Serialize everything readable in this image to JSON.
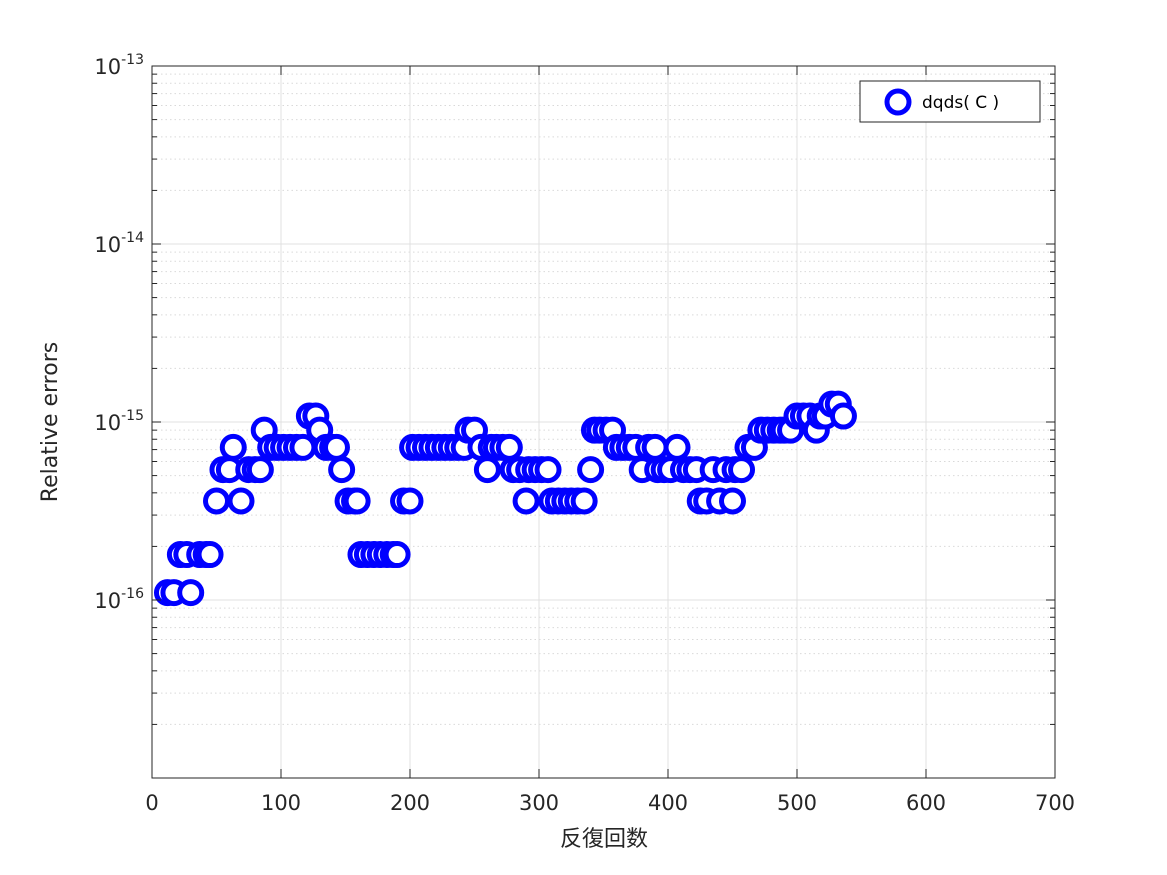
{
  "chart_data": {
    "type": "scatter",
    "xlabel": "反復回数",
    "ylabel": "Relative errors",
    "xlim": [
      0,
      700
    ],
    "ylim": [
      1e-17,
      1e-13
    ],
    "yscale": "log",
    "grid": true,
    "minor_grid": true,
    "legend_position": "top-right",
    "x_ticks": [
      {
        "value": 0,
        "label": "0"
      },
      {
        "value": 100,
        "label": "100"
      },
      {
        "value": 200,
        "label": "200"
      },
      {
        "value": 300,
        "label": "300"
      },
      {
        "value": 400,
        "label": "400"
      },
      {
        "value": 500,
        "label": "500"
      },
      {
        "value": 600,
        "label": "600"
      },
      {
        "value": 700,
        "label": "700"
      }
    ],
    "y_ticks": [
      {
        "value": 1e-13,
        "base": "10",
        "exp": "-13"
      },
      {
        "value": 1e-14,
        "base": "10",
        "exp": "-14"
      },
      {
        "value": 1e-15,
        "base": "10",
        "exp": "-15"
      },
      {
        "value": 1e-16,
        "base": "10",
        "exp": "-16"
      }
    ],
    "series": [
      {
        "name": "dqds( C )",
        "marker": "circle-open",
        "color": "#0000ff",
        "points": [
          [
            12,
            1.1e-16
          ],
          [
            17,
            1.1e-16
          ],
          [
            22,
            1.8e-16
          ],
          [
            27,
            1.8e-16
          ],
          [
            30,
            1.1e-16
          ],
          [
            37,
            1.8e-16
          ],
          [
            42,
            1.8e-16
          ],
          [
            45,
            1.8e-16
          ],
          [
            50,
            3.6e-16
          ],
          [
            55,
            5.4e-16
          ],
          [
            60,
            5.4e-16
          ],
          [
            63,
            7.2e-16
          ],
          [
            69,
            3.6e-16
          ],
          [
            75,
            5.4e-16
          ],
          [
            80,
            5.4e-16
          ],
          [
            84,
            5.4e-16
          ],
          [
            87,
            9e-16
          ],
          [
            92,
            7.2e-16
          ],
          [
            97,
            7.2e-16
          ],
          [
            102,
            7.2e-16
          ],
          [
            107,
            7.2e-16
          ],
          [
            112,
            7.2e-16
          ],
          [
            117,
            7.2e-16
          ],
          [
            122,
            1.08e-15
          ],
          [
            127,
            1.08e-15
          ],
          [
            130,
            9e-16
          ],
          [
            135,
            7.2e-16
          ],
          [
            140,
            7.2e-16
          ],
          [
            143,
            7.2e-16
          ],
          [
            147,
            5.4e-16
          ],
          [
            152,
            3.6e-16
          ],
          [
            157,
            3.6e-16
          ],
          [
            159,
            3.6e-16
          ],
          [
            162,
            1.8e-16
          ],
          [
            167,
            1.8e-16
          ],
          [
            172,
            1.8e-16
          ],
          [
            177,
            1.8e-16
          ],
          [
            182,
            1.8e-16
          ],
          [
            187,
            1.8e-16
          ],
          [
            190,
            1.8e-16
          ],
          [
            195,
            3.6e-16
          ],
          [
            200,
            3.6e-16
          ],
          [
            202,
            7.2e-16
          ],
          [
            207,
            7.2e-16
          ],
          [
            212,
            7.2e-16
          ],
          [
            217,
            7.2e-16
          ],
          [
            222,
            7.2e-16
          ],
          [
            227,
            7.2e-16
          ],
          [
            232,
            7.2e-16
          ],
          [
            237,
            7.2e-16
          ],
          [
            242,
            7.2e-16
          ],
          [
            245,
            9e-16
          ],
          [
            250,
            9e-16
          ],
          [
            255,
            7.2e-16
          ],
          [
            260,
            5.4e-16
          ],
          [
            263,
            7.2e-16
          ],
          [
            267,
            7.2e-16
          ],
          [
            272,
            7.2e-16
          ],
          [
            277,
            7.2e-16
          ],
          [
            280,
            5.4e-16
          ],
          [
            285,
            5.4e-16
          ],
          [
            290,
            3.6e-16
          ],
          [
            292,
            5.4e-16
          ],
          [
            297,
            5.4e-16
          ],
          [
            302,
            5.4e-16
          ],
          [
            307,
            5.4e-16
          ],
          [
            310,
            3.6e-16
          ],
          [
            315,
            3.6e-16
          ],
          [
            320,
            3.6e-16
          ],
          [
            325,
            3.6e-16
          ],
          [
            330,
            3.6e-16
          ],
          [
            335,
            3.6e-16
          ],
          [
            340,
            5.4e-16
          ],
          [
            343,
            9e-16
          ],
          [
            347,
            9e-16
          ],
          [
            352,
            9e-16
          ],
          [
            357,
            9e-16
          ],
          [
            360,
            7.2e-16
          ],
          [
            365,
            7.2e-16
          ],
          [
            370,
            7.2e-16
          ],
          [
            375,
            7.2e-16
          ],
          [
            380,
            5.4e-16
          ],
          [
            385,
            7.2e-16
          ],
          [
            390,
            7.2e-16
          ],
          [
            392,
            5.4e-16
          ],
          [
            397,
            5.4e-16
          ],
          [
            402,
            5.4e-16
          ],
          [
            407,
            7.2e-16
          ],
          [
            412,
            5.4e-16
          ],
          [
            417,
            5.4e-16
          ],
          [
            422,
            5.4e-16
          ],
          [
            425,
            3.6e-16
          ],
          [
            430,
            3.6e-16
          ],
          [
            435,
            5.4e-16
          ],
          [
            440,
            3.6e-16
          ],
          [
            445,
            5.4e-16
          ],
          [
            450,
            3.6e-16
          ],
          [
            452,
            5.4e-16
          ],
          [
            457,
            5.4e-16
          ],
          [
            462,
            7.2e-16
          ],
          [
            467,
            7.2e-16
          ],
          [
            472,
            9e-16
          ],
          [
            477,
            9e-16
          ],
          [
            482,
            9e-16
          ],
          [
            487,
            9e-16
          ],
          [
            490,
            9e-16
          ],
          [
            495,
            9e-16
          ],
          [
            500,
            1.08e-15
          ],
          [
            505,
            1.08e-15
          ],
          [
            510,
            1.08e-15
          ],
          [
            515,
            9e-16
          ],
          [
            518,
            1.08e-15
          ],
          [
            522,
            1.08e-15
          ],
          [
            527,
            1.26e-15
          ],
          [
            532,
            1.26e-15
          ],
          [
            536,
            1.08e-15
          ]
        ]
      }
    ]
  }
}
